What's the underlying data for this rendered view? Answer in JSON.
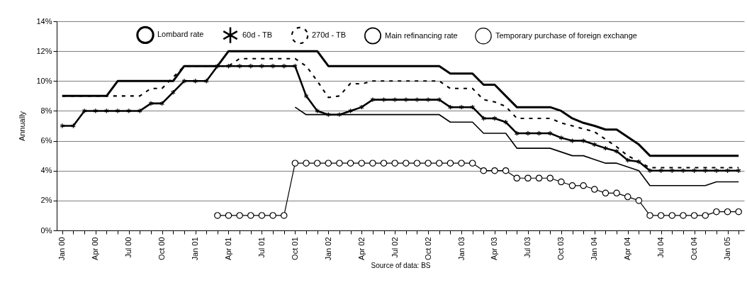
{
  "chart_data": {
    "type": "line",
    "ylabel": "Annually",
    "annotations": [
      "Source of data: BS"
    ],
    "categories": [
      "Jan 00",
      null,
      null,
      "Apr 00",
      null,
      null,
      "Jul 00",
      null,
      null,
      "Oct 00",
      null,
      null,
      "Jan 01",
      null,
      null,
      "Apr 01",
      null,
      null,
      "Jul 01",
      null,
      null,
      "Oct 01",
      null,
      null,
      "Jan 02",
      null,
      null,
      "Apr 02",
      null,
      null,
      "Jul 02",
      null,
      null,
      "Oct 02",
      null,
      null,
      "Jan 03",
      null,
      null,
      "Apr 03",
      null,
      null,
      "Jul 03",
      null,
      null,
      "Oct 03",
      null,
      null,
      "Jan 04",
      null,
      null,
      "Apr 04",
      null,
      null,
      "Jul 04",
      null,
      null,
      "Oct 04",
      null,
      null,
      "Jan 05",
      null
    ],
    "series": [
      {
        "name": "Lombard rate",
        "color": "#000000",
        "marker": "none",
        "line_style": "solid",
        "values": [
          9,
          9,
          9,
          9,
          9,
          10,
          10,
          10,
          10,
          10,
          10,
          11,
          11,
          11,
          11,
          12,
          12,
          12,
          12,
          12,
          12,
          12,
          12,
          12,
          11,
          11,
          11,
          11,
          11,
          11,
          11,
          11,
          11,
          11,
          11,
          10.5,
          10.5,
          10.5,
          9.75,
          9.75,
          9,
          8.25,
          8.25,
          8.25,
          8.25,
          8,
          7.5,
          7.2,
          7,
          6.75,
          6.75,
          6.25,
          5.75,
          5,
          5,
          5,
          5,
          5,
          5,
          5,
          5,
          5
        ]
      },
      {
        "name": "60d - TB",
        "color": "#000000",
        "marker": "cross",
        "line_style": "solid",
        "values": [
          7,
          7,
          8,
          8,
          8,
          8,
          8,
          8,
          8.5,
          8.5,
          9.25,
          10,
          10,
          10,
          11,
          11,
          11,
          11,
          11,
          11,
          11,
          11,
          9,
          8,
          7.75,
          7.75,
          8,
          8.25,
          8.75,
          8.75,
          8.75,
          8.75,
          8.75,
          8.75,
          8.75,
          8.25,
          8.25,
          8.25,
          7.5,
          7.5,
          7.25,
          6.5,
          6.5,
          6.5,
          6.5,
          6.2,
          6,
          6,
          5.75,
          5.5,
          5.3,
          4.7,
          4.6,
          4,
          4,
          4,
          4,
          4,
          4,
          4,
          4,
          4
        ]
      },
      {
        "name": "270d - TB",
        "color": "#000000",
        "marker": "none",
        "line_style": "dashed",
        "values": [
          9,
          9,
          9,
          9,
          9,
          9,
          9,
          9,
          9.5,
          9.5,
          10.25,
          11,
          11,
          11,
          11,
          11,
          11.5,
          11.5,
          11.5,
          11.5,
          11.5,
          11.5,
          11,
          10,
          8.9,
          9,
          9.85,
          9.8,
          10,
          10,
          10,
          10,
          10,
          10,
          10,
          9.5,
          9.5,
          9.5,
          8.75,
          8.6,
          8.3,
          7.5,
          7.5,
          7.5,
          7.5,
          7.2,
          7,
          6.8,
          6.6,
          6.1,
          5.6,
          5,
          4.6,
          4.2,
          4.2,
          4.2,
          4.2,
          4.2,
          4.2,
          4.2,
          4.2,
          4.2
        ]
      },
      {
        "name": "Main refinancing rate",
        "color": "#000000",
        "marker": "none",
        "line_style": "solid",
        "values": [
          null,
          null,
          null,
          null,
          null,
          null,
          null,
          null,
          null,
          null,
          null,
          null,
          null,
          null,
          null,
          null,
          null,
          null,
          null,
          null,
          null,
          8.25,
          7.75,
          7.75,
          7.75,
          7.75,
          7.75,
          7.75,
          7.75,
          7.75,
          7.75,
          7.75,
          7.75,
          7.75,
          7.75,
          7.25,
          7.25,
          7.25,
          6.5,
          6.5,
          6.5,
          5.5,
          5.5,
          5.5,
          5.5,
          5.25,
          5,
          5,
          4.75,
          4.5,
          4.5,
          4.25,
          4,
          3,
          3,
          3,
          3,
          3,
          3,
          3.25,
          3.25,
          3.25
        ]
      },
      {
        "name": "Temporary purchase of foreign exchange",
        "color": "#000000",
        "marker": "circle",
        "line_style": "solid",
        "values": [
          null,
          null,
          null,
          null,
          null,
          null,
          null,
          null,
          null,
          null,
          null,
          null,
          null,
          null,
          1,
          1,
          1,
          1,
          1,
          1,
          1,
          4.5,
          4.5,
          4.5,
          4.5,
          4.5,
          4.5,
          4.5,
          4.5,
          4.5,
          4.5,
          4.5,
          4.5,
          4.5,
          4.5,
          4.5,
          4.5,
          4.5,
          4,
          4,
          4,
          3.5,
          3.5,
          3.5,
          3.5,
          3.25,
          3,
          3,
          2.75,
          2.5,
          2.5,
          2.25,
          2,
          1,
          1,
          1,
          1,
          1,
          1,
          1.25,
          1.25,
          1.25
        ]
      }
    ],
    "ylim": [
      0,
      14
    ],
    "yticks": [
      {
        "value": 0,
        "label": "0%"
      },
      {
        "value": 2,
        "label": "2%"
      },
      {
        "value": 4,
        "label": "4%"
      },
      {
        "value": 6,
        "label": "6%"
      },
      {
        "value": 8,
        "label": "8%"
      },
      {
        "value": 10,
        "label": "10%"
      },
      {
        "value": 12,
        "label": "12%"
      },
      {
        "value": 14,
        "label": "14%"
      }
    ],
    "grid": "y",
    "legend": "top"
  }
}
